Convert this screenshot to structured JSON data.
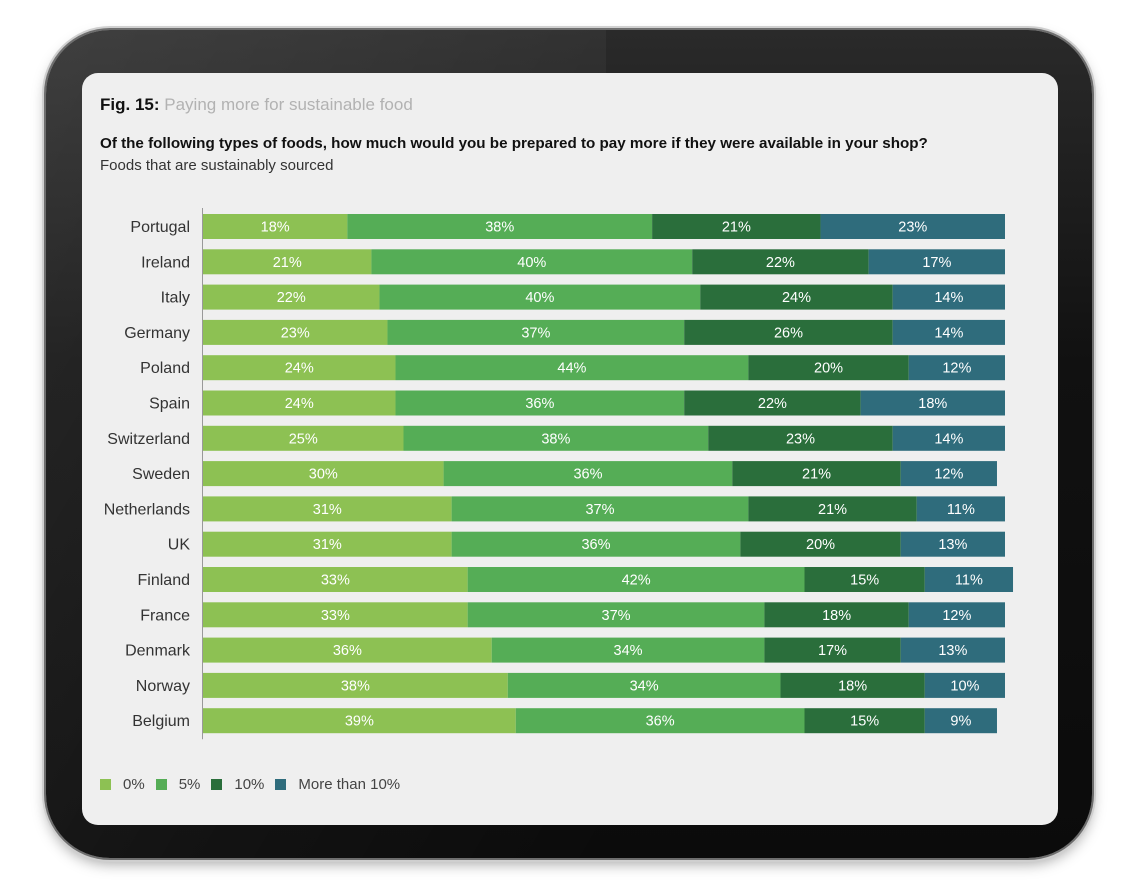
{
  "figure": {
    "number": "Fig. 15:",
    "title": "Paying more for sustainable food",
    "question": "Of the following types of foods, how much would you be prepared to pay more if they were available in your shop?",
    "subtitle": "Foods that are sustainably sourced"
  },
  "colors": {
    "0%": "#8dc153",
    "5%": "#55ad56",
    "10%": "#2a6e3b",
    "More than 10%": "#2f6c7c",
    "label_light": "#ffffff",
    "axis": "#999999"
  },
  "legend": [
    {
      "label": "0%",
      "color": "#8dc153"
    },
    {
      "label": "5%",
      "color": "#55ad56"
    },
    {
      "label": "10%",
      "color": "#2a6e3b"
    },
    {
      "label": "More than 10%",
      "color": "#2f6c7c"
    }
  ],
  "chart_data": {
    "type": "bar",
    "orientation": "horizontal",
    "stacked": true,
    "categories": [
      "Portugal",
      "Ireland",
      "Italy",
      "Germany",
      "Poland",
      "Spain",
      "Switzerland",
      "Sweden",
      "Netherlands",
      "UK",
      "Finland",
      "France",
      "Denmark",
      "Norway",
      "Belgium"
    ],
    "series": [
      {
        "name": "0%",
        "color": "#8dc153",
        "values": [
          18,
          21,
          22,
          23,
          24,
          24,
          25,
          30,
          31,
          31,
          33,
          33,
          36,
          38,
          39
        ]
      },
      {
        "name": "5%",
        "color": "#55ad56",
        "values": [
          38,
          40,
          40,
          37,
          44,
          36,
          38,
          36,
          37,
          36,
          42,
          37,
          34,
          34,
          36
        ]
      },
      {
        "name": "10%",
        "color": "#2a6e3b",
        "values": [
          21,
          22,
          24,
          26,
          20,
          22,
          23,
          21,
          21,
          20,
          15,
          18,
          17,
          18,
          15
        ]
      },
      {
        "name": "More than 10%",
        "color": "#2f6c7c",
        "values": [
          23,
          17,
          14,
          14,
          12,
          18,
          14,
          12,
          11,
          13,
          11,
          12,
          13,
          10,
          9
        ]
      }
    ],
    "xlim": [
      0,
      100
    ],
    "grid": false,
    "legend_position": "bottom-left"
  }
}
